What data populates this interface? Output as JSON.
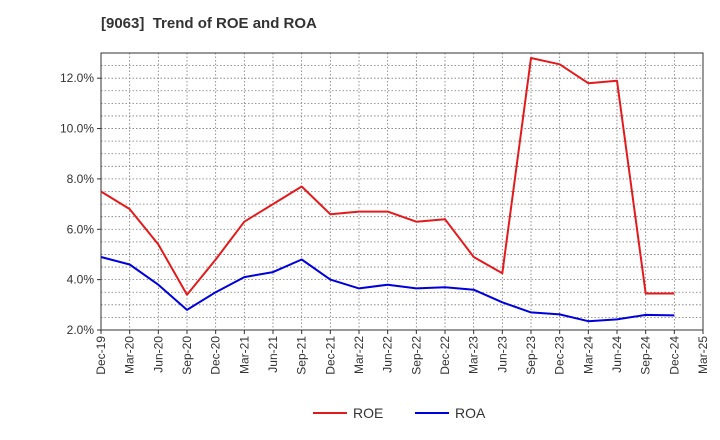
{
  "chart_data": {
    "type": "line",
    "title": "[9063]  Trend of ROE and ROA",
    "x": [
      "Dec-19",
      "Mar-20",
      "Jun-20",
      "Sep-20",
      "Dec-20",
      "Mar-21",
      "Jun-21",
      "Sep-21",
      "Dec-21",
      "Mar-22",
      "Jun-22",
      "Sep-22",
      "Dec-22",
      "Mar-23",
      "Jun-23",
      "Sep-23",
      "Dec-23",
      "Mar-24",
      "Jun-24",
      "Sep-24",
      "Dec-24",
      "Mar-25"
    ],
    "yticks": [
      "2.0%",
      "4.0%",
      "6.0%",
      "8.0%",
      "10.0%",
      "12.0%"
    ],
    "ylim": [
      2.0,
      13.0
    ],
    "grid": true,
    "legend_position": "bottom",
    "series": [
      {
        "name": "ROE",
        "color": "#e31a1c",
        "values": [
          7.5,
          6.8,
          5.4,
          3.4,
          4.8,
          6.3,
          7.0,
          7.7,
          6.6,
          6.7,
          6.7,
          6.3,
          6.4,
          4.9,
          4.25,
          12.8,
          12.55,
          11.8,
          11.9,
          3.45,
          3.45,
          null
        ]
      },
      {
        "name": "ROA",
        "color": "#0000dd",
        "values": [
          4.9,
          4.6,
          3.8,
          2.8,
          3.5,
          4.1,
          4.3,
          4.8,
          4.0,
          3.65,
          3.8,
          3.65,
          3.7,
          3.6,
          3.1,
          2.7,
          2.62,
          2.35,
          2.42,
          2.6,
          2.58,
          null
        ]
      }
    ]
  }
}
